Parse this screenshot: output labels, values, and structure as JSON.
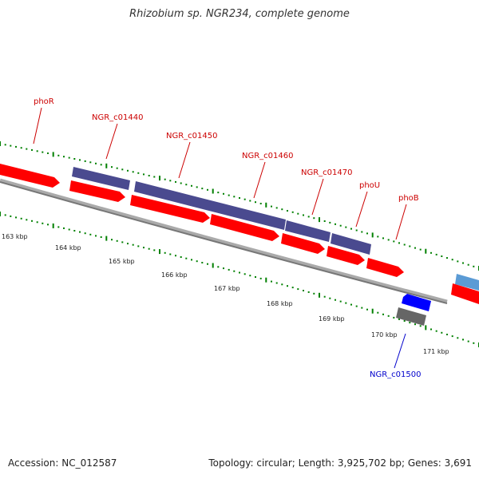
{
  "title": "Rhizobium sp. NGR234, complete genome",
  "footer": {
    "accession": "Accession: NC_012587",
    "summary": "Topology: circular; Length: 3,925,702 bp; Genes: 3,691"
  },
  "colors": {
    "cds": "#ff0000",
    "gene_purple": "#4a4a8f",
    "reverse_cds": "#0000ff",
    "reverse_gene": "#666666",
    "light_blue_feature": "#5b9bd5",
    "backbone": "#888888",
    "tick": "#008000",
    "forward_label": "#cc0000",
    "reverse_label": "#0000cc"
  },
  "scale": {
    "ticks": [
      "163 kbp",
      "164 kbp",
      "165 kbp",
      "166 kbp",
      "167 kbp",
      "168 kbp",
      "169 kbp",
      "170 kbp",
      "171 kbp"
    ]
  },
  "genes_forward": [
    {
      "label": "phoR"
    },
    {
      "label": "NGR_c01440"
    },
    {
      "label": "NGR_c01450"
    },
    {
      "label": "NGR_c01460"
    },
    {
      "label": "NGR_c01470"
    },
    {
      "label": "phoU"
    },
    {
      "label": "phoB"
    }
  ],
  "genes_reverse": [
    {
      "label": "NGR_c01500"
    }
  ]
}
